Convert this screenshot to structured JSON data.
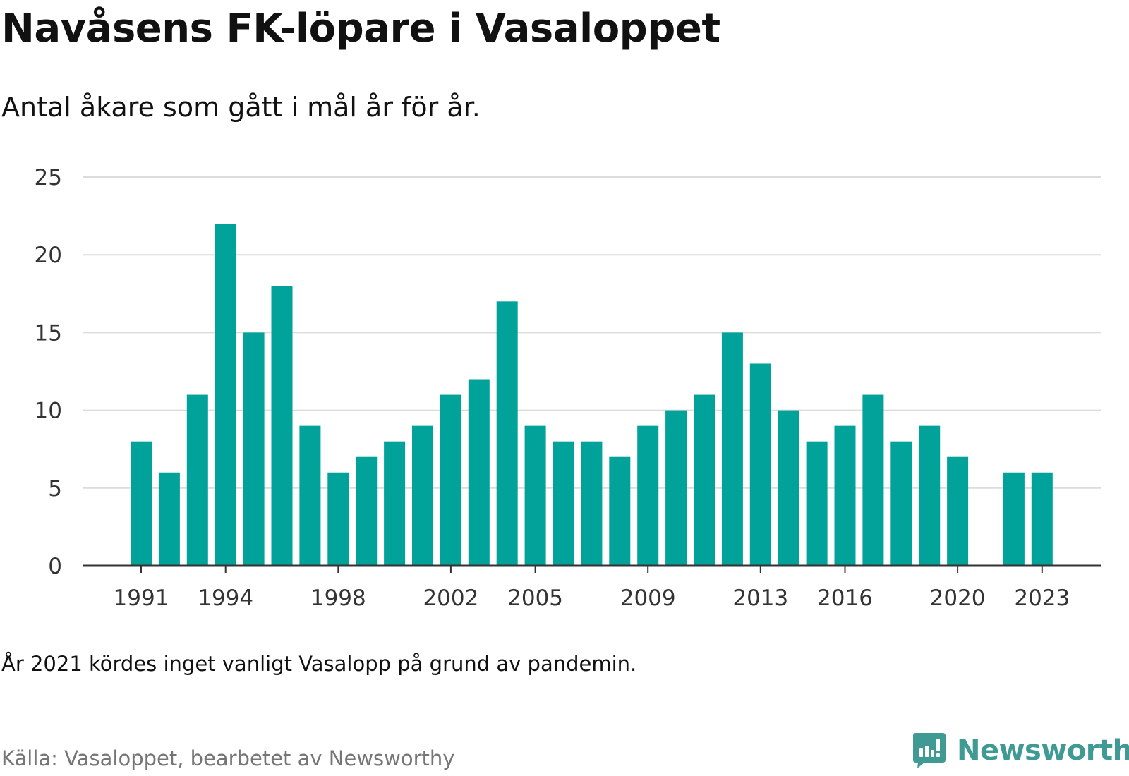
{
  "title": "Navåsens FK-löpare i Vasaloppet",
  "subtitle": "Antal åkare som gått i mål år för år.",
  "note": "År 2021 kördes inget vanligt Vasalopp på grund av pandemin.",
  "source": "Källa: Vasaloppet, bearbetet av Newsworthy",
  "brand": {
    "name": "Newsworthy",
    "icon": "newsworthy-logo-icon",
    "color": "#3f9a94"
  },
  "chart_data": {
    "type": "bar",
    "title": "Navåsens FK-löpare i Vasaloppet",
    "subtitle": "Antal åkare som gått i mål år för år.",
    "xlabel": "",
    "ylabel": "",
    "ylim": [
      0,
      25
    ],
    "yticks": [
      0,
      5,
      10,
      15,
      20,
      25
    ],
    "xtick_labels": [
      1991,
      1994,
      1998,
      2002,
      2005,
      2009,
      2013,
      2016,
      2020,
      2023
    ],
    "grid": true,
    "legend": "none",
    "bar_color": "#00a29a",
    "categories": [
      1991,
      1992,
      1993,
      1994,
      1995,
      1996,
      1997,
      1998,
      1999,
      2000,
      2001,
      2002,
      2003,
      2004,
      2005,
      2006,
      2007,
      2008,
      2009,
      2010,
      2011,
      2012,
      2013,
      2014,
      2015,
      2016,
      2017,
      2018,
      2019,
      2020,
      2021,
      2022,
      2023
    ],
    "values": [
      8,
      6,
      11,
      22,
      15,
      18,
      9,
      6,
      7,
      8,
      9,
      11,
      12,
      17,
      9,
      8,
      8,
      7,
      9,
      10,
      11,
      15,
      13,
      10,
      8,
      9,
      11,
      8,
      9,
      7,
      null,
      6,
      6
    ]
  }
}
